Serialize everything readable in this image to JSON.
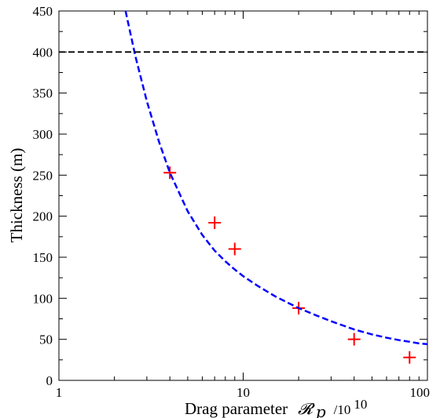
{
  "chart_data": {
    "type": "scatter",
    "x_scale": "log",
    "xlim": [
      1,
      100
    ],
    "ylim": [
      0,
      450
    ],
    "grid": false,
    "xlabel": {
      "prefix": "Drag parameter",
      "symbol": "𝓡",
      "subscript": "p",
      "suffix": "/10",
      "exponent": "10"
    },
    "ylabel": "Thickness (m)",
    "x_ticks": [
      {
        "value": 1,
        "label": "1"
      },
      {
        "value": 10,
        "label": "10"
      },
      {
        "value": 100,
        "label": "100"
      }
    ],
    "y_ticks": [
      {
        "value": 0,
        "label": "0"
      },
      {
        "value": 50,
        "label": "50"
      },
      {
        "value": 100,
        "label": "100"
      },
      {
        "value": 150,
        "label": "150"
      },
      {
        "value": 200,
        "label": "200"
      },
      {
        "value": 250,
        "label": "250"
      },
      {
        "value": 300,
        "label": "300"
      },
      {
        "value": 350,
        "label": "350"
      },
      {
        "value": 400,
        "label": "400"
      },
      {
        "value": 450,
        "label": "450"
      }
    ],
    "series": [
      {
        "kind": "markers",
        "marker": "plus",
        "color": "#ff0000",
        "x": [
          4,
          7,
          9,
          20,
          40,
          80
        ],
        "y": [
          253,
          192,
          160,
          88,
          50,
          28
        ]
      },
      {
        "kind": "line",
        "style": "dashed",
        "color": "#0000ff",
        "x": [
          2.3,
          2.6,
          3,
          3.5,
          4,
          5,
          6,
          7,
          8,
          9,
          10,
          12,
          15,
          20,
          25,
          30,
          40,
          50,
          60,
          70,
          80,
          90,
          100
        ],
        "y": [
          450,
          395,
          340,
          290,
          253,
          206,
          177,
          158,
          145,
          135,
          127,
          115,
          102,
          88,
          79,
          72,
          62,
          56,
          52,
          49,
          47,
          45,
          44
        ]
      },
      {
        "kind": "hline",
        "style": "dashed",
        "color": "#000000",
        "y": 400
      }
    ]
  }
}
